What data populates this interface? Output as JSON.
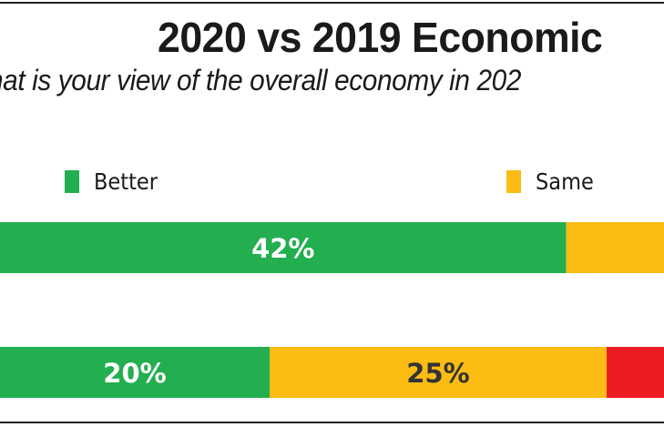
{
  "chart_data": {
    "type": "bar",
    "orientation": "horizontal",
    "stacked": true,
    "title": "2020 vs 2019 Economic",
    "subtitle": "hat is your view of the overall economy in 202",
    "legend": {
      "position": "top",
      "entries": [
        "Better",
        "Same"
      ]
    },
    "xlim": [
      0,
      100
    ],
    "grid": false,
    "rows": [
      {
        "segments": [
          {
            "series": "Better",
            "value": 42,
            "label": "42%"
          },
          {
            "series": "Same",
            "value": null,
            "label": ""
          }
        ]
      },
      {
        "segments": [
          {
            "series": "Better",
            "value": 20,
            "label": "20%"
          },
          {
            "series": "Same",
            "value": 25,
            "label": "25%"
          },
          {
            "series": "",
            "value": null,
            "label": ""
          }
        ]
      }
    ],
    "colors": {
      "Better": "#23ae50",
      "Same": "#fbbc14",
      "third": "#ed1c24"
    },
    "label_colors": {
      "Better": "#ffffff",
      "Same": "#333333"
    }
  }
}
